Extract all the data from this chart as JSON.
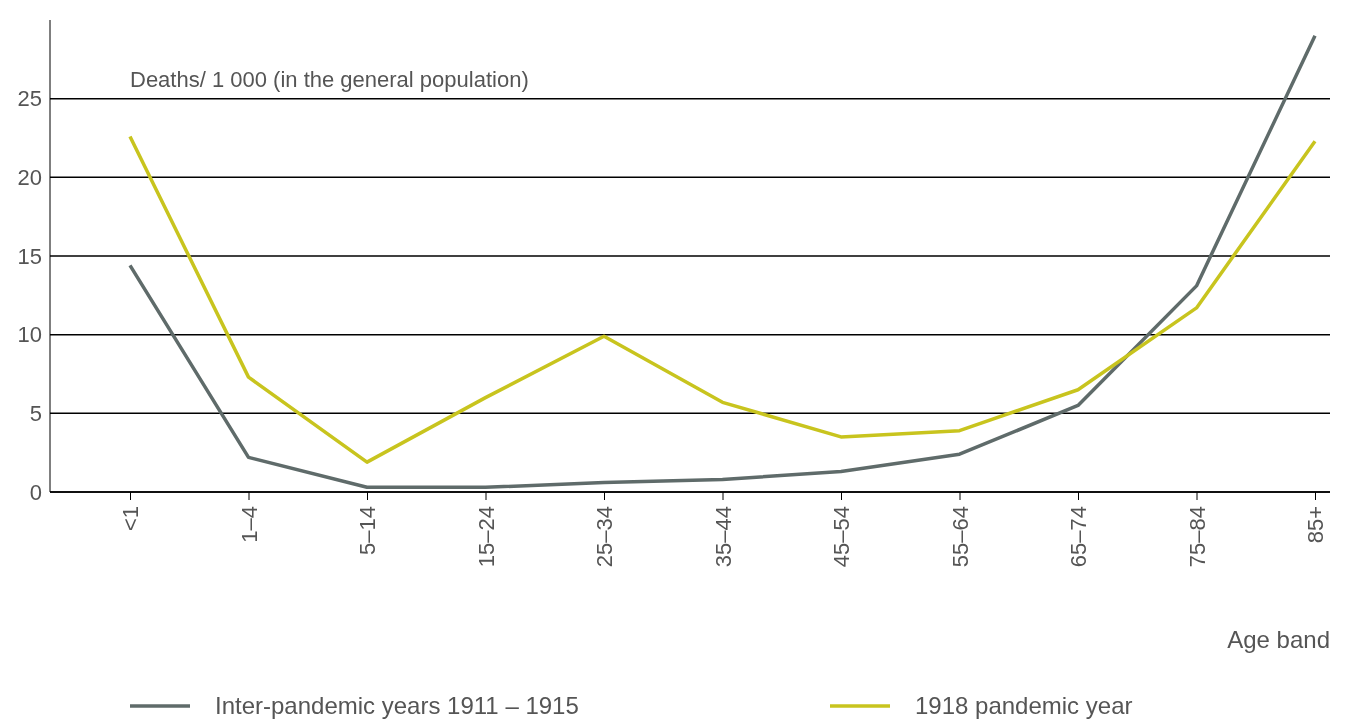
{
  "chart_data": {
    "type": "line",
    "ylabel": "Deaths/ 1 000 (in the general population)",
    "xlabel": "Age band",
    "categories": [
      "<1",
      "1–4",
      "5–14",
      "15–24",
      "25–34",
      "35–44",
      "45–54",
      "55–64",
      "65–74",
      "75–84",
      "85+"
    ],
    "series": [
      {
        "name": "Inter-pandemic years 1911 – 1915",
        "color": "#5f6b6a",
        "values": [
          14.4,
          2.2,
          0.3,
          0.3,
          0.6,
          0.8,
          1.3,
          2.4,
          5.5,
          13.1,
          29
        ]
      },
      {
        "name": "1918 pandemic year",
        "color": "#c8c41e",
        "values": [
          22.6,
          7.3,
          1.9,
          6.0,
          9.9,
          5.7,
          3.5,
          3.9,
          6.5,
          11.7,
          22.3
        ]
      }
    ],
    "ylim": [
      0,
      30
    ],
    "yticks": [
      0,
      5,
      10,
      15,
      20,
      25
    ],
    "grid": "y",
    "legend": "bottom",
    "marker": "none",
    "line_style": "solid"
  }
}
